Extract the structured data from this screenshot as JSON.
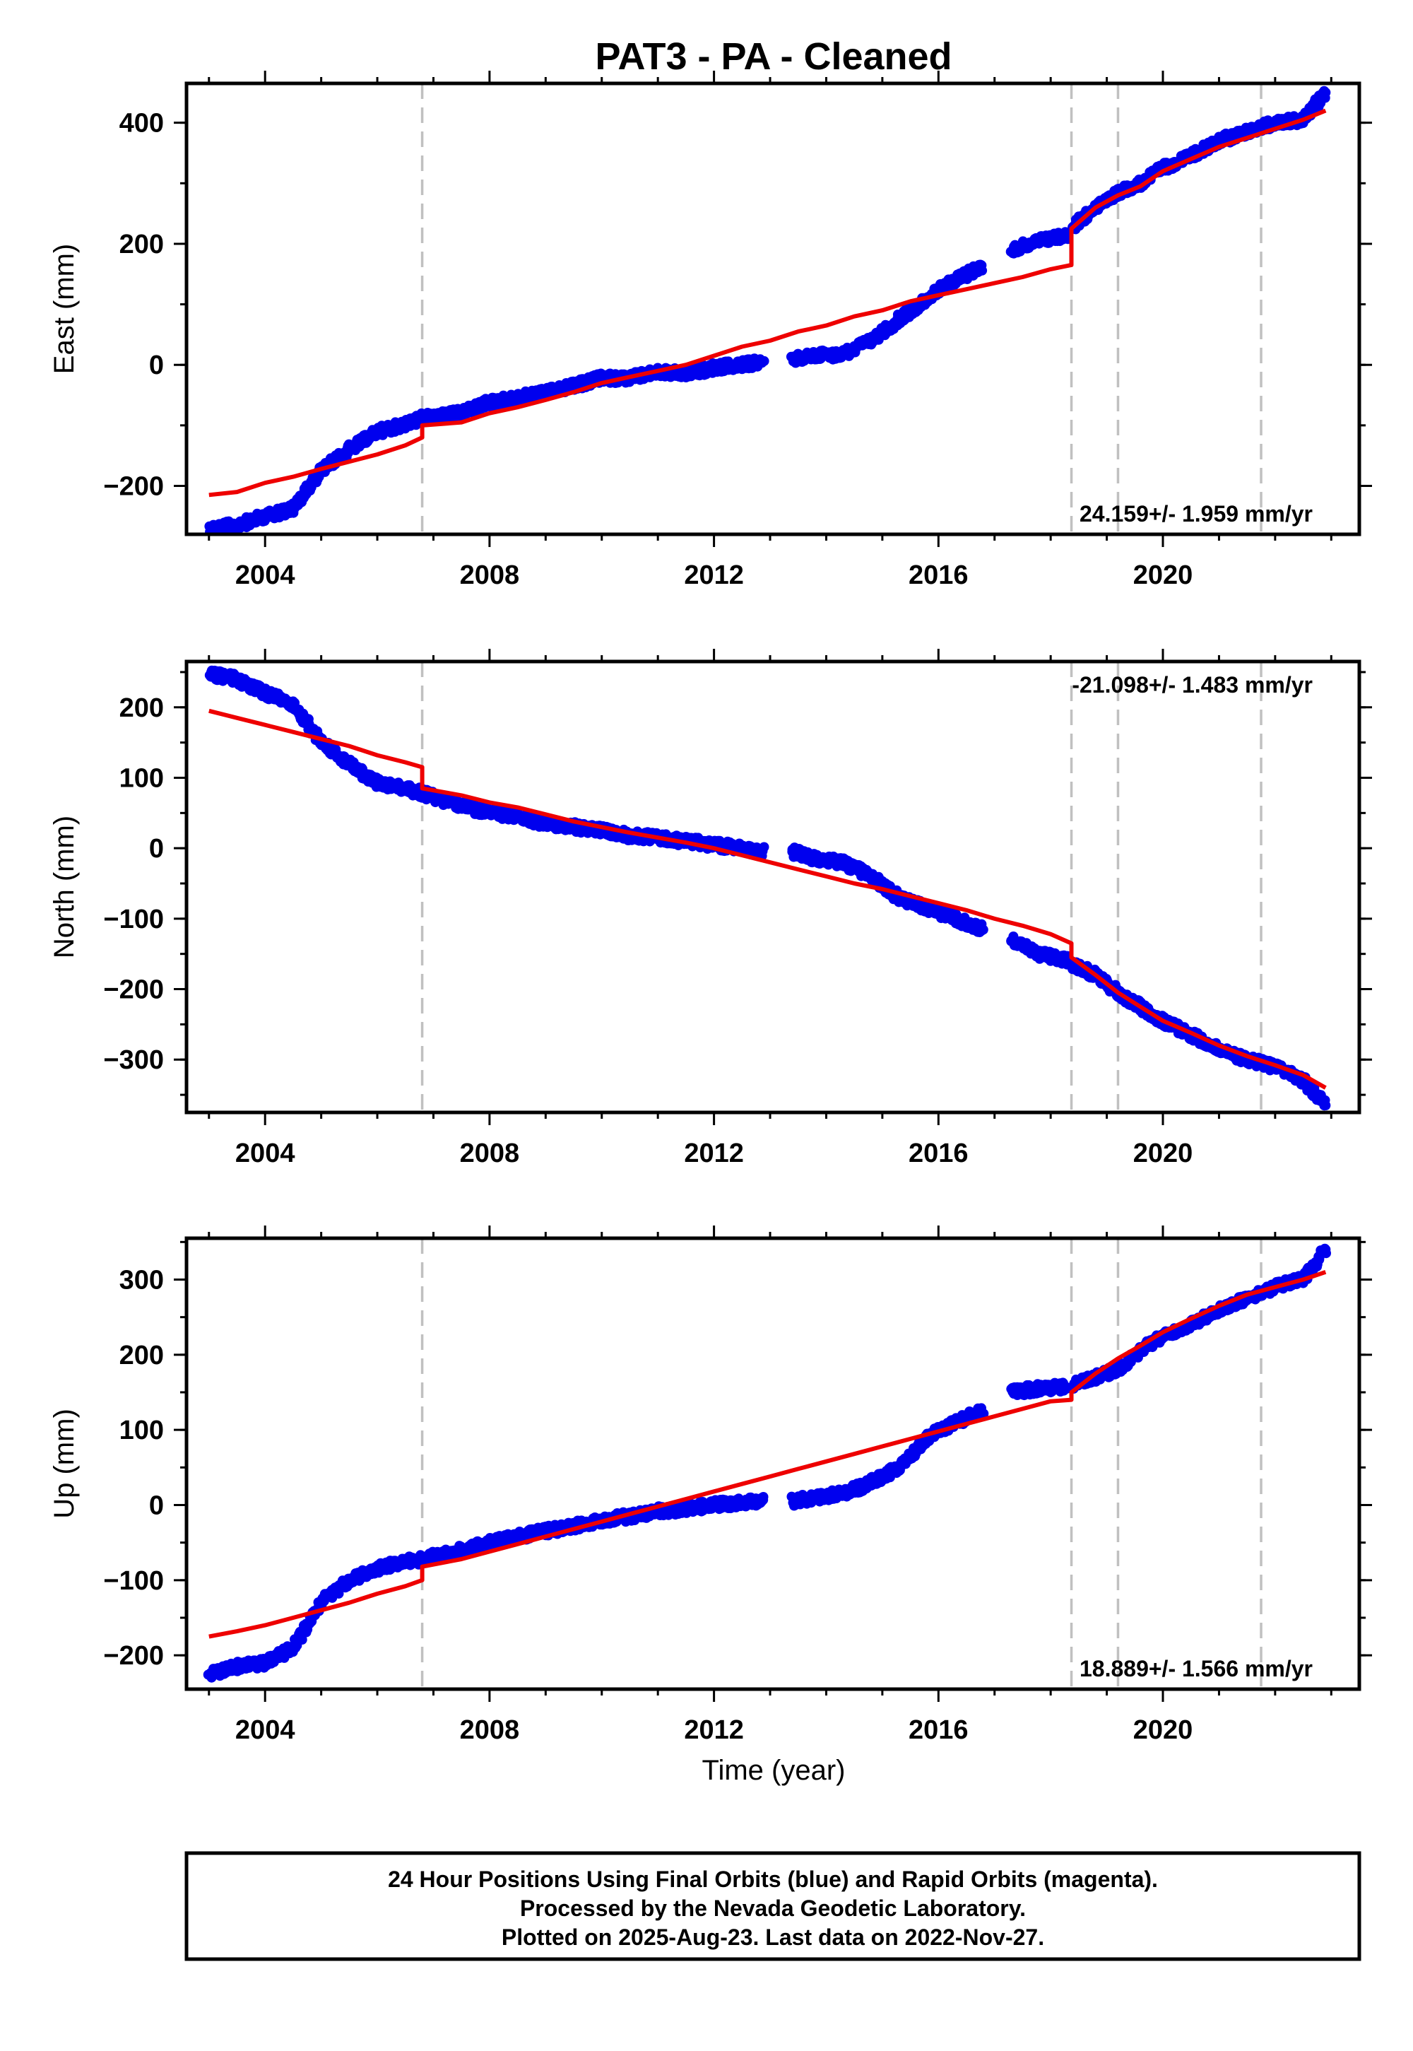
{
  "title": "PAT3  - PA - Cleaned",
  "colors": {
    "final": "#0000ee",
    "model": "#ee0000",
    "marker": "#c0c0c0"
  },
  "x_label": "Time (year)",
  "x_ticks": [
    "2004",
    "2008",
    "2012",
    "2016",
    "2020"
  ],
  "footer": [
    "24 Hour Positions Using Final Orbits (blue) and Rapid Orbits (magenta).",
    "Processed by the Nevada Geodetic Laboratory.",
    "Plotted on 2025-Aug-23. Last data on 2022-Nov-27."
  ],
  "chart_data": [
    {
      "type": "scatter",
      "ylabel": "East (mm)",
      "rate_label": "24.159+/- 1.959 mm/yr",
      "rate_position": "bottom-right",
      "xlim": [
        2002.6,
        2023.5
      ],
      "ylim": [
        -280,
        465
      ],
      "yticks": [
        -200,
        0,
        200,
        400
      ],
      "ytick_labels": [
        "−200",
        "0",
        "200",
        "400"
      ],
      "markers": [
        2006.8,
        2018.37,
        2019.2,
        2021.75
      ],
      "series": [
        {
          "name": "Final Orbits",
          "style": "points",
          "x": [
            2003.0,
            2003.5,
            2004.0,
            2004.5,
            2005.0,
            2005.5,
            2006.0,
            2006.5,
            2006.8,
            2007.5,
            2008.0,
            2008.5,
            2009.0,
            2009.5,
            2010.0,
            2010.5,
            2011.0,
            2011.5,
            2012.0,
            2012.5,
            2012.9,
            null,
            2013.4,
            2013.8,
            2014.3,
            2014.8,
            2015.3,
            2015.8,
            2016.3,
            2016.8,
            null,
            2017.3,
            2017.8,
            2018.3,
            null,
            2018.4,
            2018.8,
            2019.2,
            2019.6,
            2020.0,
            2020.5,
            2021.0,
            2021.5,
            2022.0,
            2022.5,
            2022.9
          ],
          "y": [
            -270,
            -265,
            -250,
            -238,
            -175,
            -140,
            -110,
            -98,
            -88,
            -80,
            -62,
            -55,
            -45,
            -35,
            -22,
            -22,
            -12,
            -15,
            -5,
            0,
            5,
            null,
            10,
            15,
            18,
            40,
            75,
            110,
            140,
            165,
            null,
            190,
            205,
            215,
            null,
            230,
            260,
            285,
            300,
            325,
            345,
            370,
            385,
            400,
            405,
            450
          ]
        },
        {
          "name": "Model",
          "style": "line",
          "x": [
            2003.0,
            2003.5,
            2004.0,
            2004.5,
            2005.0,
            2005.5,
            2006.0,
            2006.5,
            2006.8,
            2006.8,
            2007.5,
            2008.0,
            2008.5,
            2009.0,
            2009.5,
            2010.0,
            2010.5,
            2011.0,
            2011.5,
            2012.0,
            2012.5,
            2013.0,
            2013.5,
            2014.0,
            2014.5,
            2015.0,
            2015.5,
            2016.0,
            2016.5,
            2017.0,
            2017.5,
            2018.0,
            2018.37,
            2018.37,
            2018.8,
            2019.2,
            2019.6,
            2020.0,
            2020.5,
            2021.0,
            2021.5,
            2022.0,
            2022.5,
            2022.9
          ],
          "y": [
            -215,
            -210,
            -195,
            -185,
            -172,
            -160,
            -148,
            -133,
            -120,
            -100,
            -95,
            -80,
            -70,
            -58,
            -45,
            -30,
            -20,
            -10,
            0,
            15,
            30,
            40,
            55,
            65,
            80,
            90,
            105,
            115,
            125,
            135,
            145,
            158,
            165,
            225,
            260,
            280,
            295,
            320,
            340,
            360,
            375,
            390,
            405,
            420
          ]
        }
      ]
    },
    {
      "type": "scatter",
      "ylabel": "North (mm)",
      "rate_label": "-21.098+/- 1.483 mm/yr",
      "rate_position": "top-right",
      "xlim": [
        2002.6,
        2023.5
      ],
      "ylim": [
        -375,
        265
      ],
      "yticks": [
        -300,
        -200,
        -100,
        0,
        100,
        200
      ],
      "ytick_labels": [
        "−300",
        "−200",
        "−100",
        "0",
        "100",
        "200"
      ],
      "markers": [
        2006.8,
        2018.37,
        2019.2,
        2021.75
      ],
      "series": [
        {
          "name": "Final Orbits",
          "style": "points",
          "x": [
            2003.0,
            2003.5,
            2004.0,
            2004.5,
            2005.0,
            2005.5,
            2006.0,
            2006.5,
            2006.8,
            2007.5,
            2008.0,
            2008.5,
            2009.0,
            2009.5,
            2010.0,
            2010.5,
            2011.0,
            2011.5,
            2012.0,
            2012.5,
            2012.9,
            null,
            2013.4,
            2013.8,
            2014.3,
            2014.8,
            2015.3,
            2015.8,
            2016.3,
            2016.8,
            null,
            2017.3,
            2017.8,
            2018.3,
            null,
            2018.4,
            2018.8,
            2019.2,
            2019.6,
            2020.0,
            2020.5,
            2021.0,
            2021.5,
            2022.0,
            2022.5,
            2022.9
          ],
          "y": [
            248,
            240,
            220,
            205,
            150,
            120,
            92,
            85,
            78,
            60,
            50,
            45,
            35,
            30,
            25,
            18,
            15,
            10,
            5,
            0,
            -5,
            null,
            -5,
            -15,
            -20,
            -40,
            -70,
            -85,
            -100,
            -115,
            null,
            -130,
            -150,
            -160,
            null,
            -165,
            -180,
            -205,
            -225,
            -245,
            -265,
            -285,
            -300,
            -310,
            -330,
            -365
          ]
        },
        {
          "name": "Model",
          "style": "line",
          "x": [
            2003.0,
            2003.5,
            2004.0,
            2004.5,
            2005.0,
            2005.5,
            2006.0,
            2006.5,
            2006.8,
            2006.8,
            2007.5,
            2008.0,
            2008.5,
            2009.0,
            2009.5,
            2010.0,
            2010.5,
            2011.0,
            2011.5,
            2012.0,
            2012.5,
            2013.0,
            2013.5,
            2014.0,
            2014.5,
            2015.0,
            2015.5,
            2016.0,
            2016.5,
            2017.0,
            2017.5,
            2018.0,
            2018.37,
            2018.37,
            2018.8,
            2019.2,
            2019.6,
            2020.0,
            2020.5,
            2021.0,
            2021.5,
            2022.0,
            2022.5,
            2022.9
          ],
          "y": [
            195,
            185,
            175,
            165,
            155,
            145,
            132,
            122,
            115,
            85,
            75,
            65,
            58,
            48,
            38,
            30,
            22,
            15,
            8,
            0,
            -10,
            -20,
            -30,
            -40,
            -50,
            -58,
            -68,
            -78,
            -88,
            -100,
            -110,
            -122,
            -135,
            -155,
            -180,
            -205,
            -225,
            -245,
            -262,
            -280,
            -295,
            -308,
            -322,
            -340
          ]
        }
      ]
    },
    {
      "type": "scatter",
      "ylabel": "Up (mm)",
      "rate_label": "18.889+/- 1.566 mm/yr",
      "rate_position": "bottom-right",
      "xlim": [
        2002.6,
        2023.5
      ],
      "ylim": [
        -245,
        355
      ],
      "yticks": [
        -200,
        -100,
        0,
        100,
        200,
        300
      ],
      "ytick_labels": [
        "−200",
        "−100",
        "0",
        "100",
        "200",
        "300"
      ],
      "markers": [
        2006.8,
        2018.37,
        2019.2,
        2021.75
      ],
      "series": [
        {
          "name": "Final Orbits",
          "style": "points",
          "x": [
            2003.0,
            2003.5,
            2004.0,
            2004.5,
            2005.0,
            2005.5,
            2006.0,
            2006.5,
            2006.8,
            2007.5,
            2008.0,
            2008.5,
            2009.0,
            2009.5,
            2010.0,
            2010.5,
            2011.0,
            2011.5,
            2012.0,
            2012.5,
            2012.9,
            null,
            2013.4,
            2013.8,
            2014.3,
            2014.8,
            2015.3,
            2015.8,
            2016.3,
            2016.8,
            null,
            2017.3,
            2017.8,
            2018.3,
            null,
            2018.4,
            2018.8,
            2019.2,
            2019.6,
            2020.0,
            2020.5,
            2021.0,
            2021.5,
            2022.0,
            2022.5,
            2022.9
          ],
          "y": [
            -225,
            -215,
            -210,
            -190,
            -130,
            -100,
            -85,
            -75,
            -72,
            -60,
            -50,
            -42,
            -35,
            -28,
            -20,
            -15,
            -8,
            -5,
            0,
            3,
            5,
            null,
            5,
            10,
            15,
            30,
            50,
            90,
            110,
            125,
            null,
            150,
            155,
            158,
            null,
            160,
            170,
            180,
            205,
            225,
            240,
            260,
            275,
            290,
            300,
            340
          ]
        },
        {
          "name": "Model",
          "style": "line",
          "x": [
            2003.0,
            2003.5,
            2004.0,
            2004.5,
            2005.0,
            2005.5,
            2006.0,
            2006.5,
            2006.8,
            2006.8,
            2007.5,
            2008.0,
            2008.5,
            2009.0,
            2009.5,
            2010.0,
            2010.5,
            2011.0,
            2011.5,
            2012.0,
            2012.5,
            2013.0,
            2013.5,
            2014.0,
            2014.5,
            2015.0,
            2015.5,
            2016.0,
            2016.5,
            2017.0,
            2017.5,
            2018.0,
            2018.37,
            2018.37,
            2018.8,
            2019.2,
            2019.6,
            2020.0,
            2020.5,
            2021.0,
            2021.5,
            2022.0,
            2022.5,
            2022.9
          ],
          "y": [
            -175,
            -168,
            -160,
            -150,
            -140,
            -130,
            -118,
            -108,
            -100,
            -82,
            -72,
            -62,
            -52,
            -42,
            -32,
            -22,
            -12,
            -2,
            8,
            18,
            28,
            38,
            48,
            58,
            68,
            78,
            88,
            98,
            108,
            118,
            128,
            138,
            140,
            150,
            175,
            195,
            212,
            230,
            248,
            265,
            280,
            290,
            300,
            310
          ]
        }
      ]
    }
  ]
}
